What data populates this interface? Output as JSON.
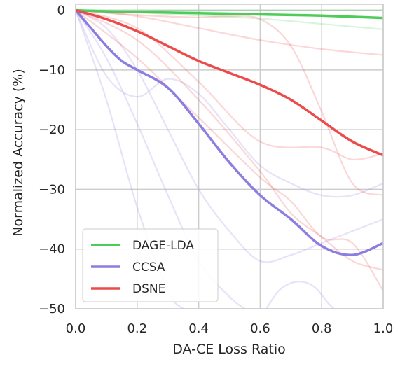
{
  "chart_data": {
    "type": "line",
    "xlabel": "DA-CE Loss Ratio",
    "ylabel": "Normalized Accuracy (%)",
    "xlim": [
      0.0,
      1.0
    ],
    "ylim": [
      -50,
      1
    ],
    "xticks": [
      0.0,
      0.2,
      0.4,
      0.6,
      0.8,
      1.0
    ],
    "xtick_labels": [
      "0.0",
      "0.2",
      "0.4",
      "0.6",
      "0.8",
      "1.0"
    ],
    "yticks": [
      0,
      -10,
      -20,
      -30,
      -40,
      -50
    ],
    "ytick_labels": [
      "0",
      "−10",
      "−20",
      "−30",
      "−40",
      "−50"
    ],
    "grid": true,
    "legend_position": "lower-left",
    "series": [
      {
        "name": "DAGE-LDA",
        "color": "#4dcc5a",
        "x": [
          0.0,
          0.1,
          0.2,
          0.3,
          0.4,
          0.5,
          0.6,
          0.7,
          0.8,
          0.9,
          1.0
        ],
        "values": [
          0.0,
          -0.2,
          -0.3,
          -0.4,
          -0.5,
          -0.6,
          -0.7,
          -0.8,
          -0.9,
          -1.1,
          -1.3
        ]
      },
      {
        "name": "CCSA",
        "color": "#8c7ee0",
        "x": [
          0.0,
          0.05,
          0.1,
          0.15,
          0.2,
          0.3,
          0.4,
          0.5,
          0.6,
          0.7,
          0.8,
          0.9,
          1.0
        ],
        "values": [
          0.0,
          -3.0,
          -6.0,
          -8.5,
          -10.0,
          -13.0,
          -19.0,
          -25.5,
          -31.0,
          -35.0,
          -39.5,
          -41.0,
          -39.0
        ]
      },
      {
        "name": "DSNE",
        "color": "#ec4b4b",
        "x": [
          0.0,
          0.1,
          0.2,
          0.3,
          0.4,
          0.5,
          0.6,
          0.7,
          0.8,
          0.9,
          1.0
        ],
        "values": [
          0.0,
          -1.5,
          -3.5,
          -6.0,
          -8.5,
          -10.5,
          -12.5,
          -15.0,
          -18.5,
          -22.0,
          -24.3
        ]
      }
    ],
    "faint_runs": [
      {
        "color": "#4dcc5a",
        "x": [
          0.0,
          0.2,
          0.4,
          0.6,
          0.8,
          1.0
        ],
        "values": [
          0.0,
          -0.4,
          -0.9,
          -1.4,
          -2.3,
          -3.2
        ]
      },
      {
        "color": "#4dcc5a",
        "x": [
          0.0,
          0.2,
          0.4,
          0.6,
          0.8,
          1.0
        ],
        "values": [
          0.0,
          -0.2,
          -0.3,
          -0.6,
          -0.9,
          -1.2
        ]
      },
      {
        "color": "#4dcc5a",
        "x": [
          0.0,
          0.2,
          0.4,
          0.6,
          0.8,
          1.0
        ],
        "values": [
          0.0,
          0.0,
          0.0,
          0.0,
          0.0,
          0.0
        ]
      },
      {
        "color": "#8c7ee0",
        "x": [
          0.0,
          0.1,
          0.2,
          0.3,
          0.4,
          0.5,
          0.6,
          0.7,
          0.8,
          0.9,
          1.0
        ],
        "values": [
          0.0,
          -11.0,
          -14.5,
          -11.5,
          -14.0,
          -20.0,
          -26.0,
          -29.0,
          -31.0,
          -31.0,
          -29.0
        ]
      },
      {
        "color": "#8c7ee0",
        "x": [
          0.0,
          0.1,
          0.2,
          0.3,
          0.4,
          0.5,
          0.6,
          0.7,
          0.8,
          0.9,
          1.0
        ],
        "values": [
          0.0,
          -3.0,
          -10.0,
          -20.0,
          -30.0,
          -37.0,
          -42.0,
          -41.0,
          -39.0,
          -37.0,
          -35.0
        ]
      },
      {
        "color": "#8c7ee0",
        "x": [
          0.0,
          0.1,
          0.2,
          0.3,
          0.4,
          0.5,
          0.55
        ],
        "values": [
          0.0,
          -8.0,
          -19.0,
          -31.0,
          -42.0,
          -48.0,
          -50.0
        ]
      },
      {
        "color": "#8c7ee0",
        "x": [
          0.0,
          0.1,
          0.2,
          0.3,
          0.35
        ],
        "values": [
          0.0,
          -15.0,
          -33.0,
          -47.0,
          -50.0
        ]
      },
      {
        "color": "#8c7ee0",
        "x": [
          0.62,
          0.66,
          0.7,
          0.74,
          0.78,
          0.82,
          0.84
        ],
        "values": [
          -50.0,
          -47.0,
          -45.7,
          -45.5,
          -46.5,
          -49.0,
          -50.0
        ]
      },
      {
        "color": "#ec4b4b",
        "x": [
          0.0,
          0.2,
          0.4,
          0.5,
          0.6,
          0.7,
          0.8,
          0.9,
          1.0
        ],
        "values": [
          0.0,
          -0.8,
          -1.2,
          -1.0,
          -1.5,
          -6.0,
          -17.0,
          -29.0,
          -31.0
        ]
      },
      {
        "color": "#ec4b4b",
        "x": [
          0.0,
          0.2,
          0.4,
          0.6,
          0.8,
          1.0
        ],
        "values": [
          0.0,
          -1.0,
          -3.0,
          -5.0,
          -6.5,
          -7.5
        ]
      },
      {
        "color": "#ec4b4b",
        "x": [
          0.0,
          0.2,
          0.4,
          0.6,
          0.8,
          0.9,
          1.0
        ],
        "values": [
          0.0,
          -3.0,
          -12.0,
          -22.0,
          -23.0,
          -25.0,
          -24.0
        ]
      },
      {
        "color": "#ec4b4b",
        "x": [
          0.0,
          0.2,
          0.4,
          0.6,
          0.7,
          0.8,
          0.9,
          1.0
        ],
        "values": [
          0.0,
          -5.0,
          -15.0,
          -27.0,
          -34.0,
          -38.0,
          -42.0,
          -43.5
        ]
      },
      {
        "color": "#ec4b4b",
        "x": [
          0.0,
          0.2,
          0.4,
          0.6,
          0.7,
          0.8,
          0.9,
          1.0
        ],
        "values": [
          0.0,
          -8.0,
          -18.0,
          -28.0,
          -32.0,
          -38.0,
          -39.0,
          -47.0
        ]
      }
    ]
  }
}
